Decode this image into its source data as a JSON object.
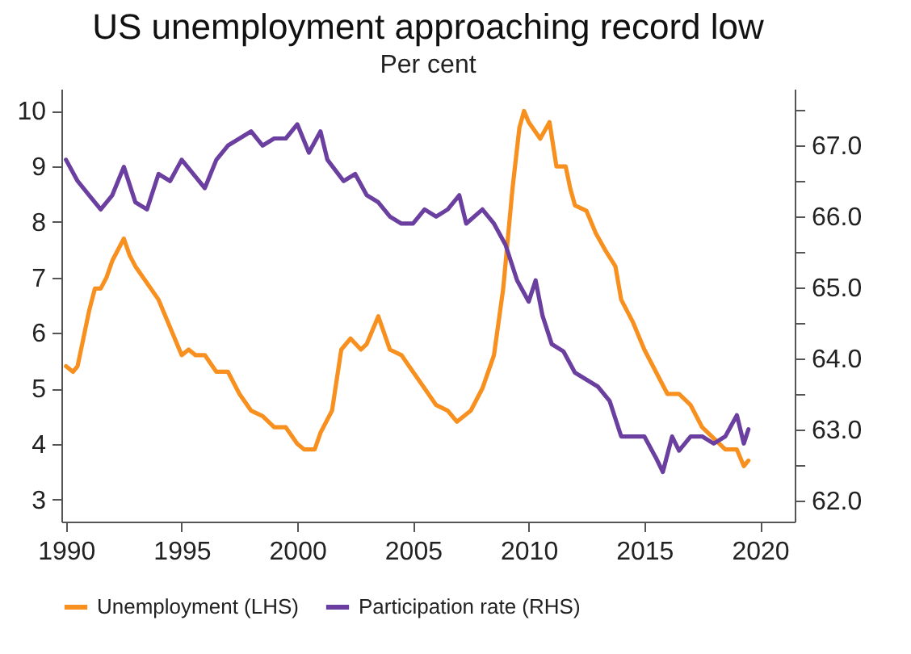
{
  "chart_data": {
    "type": "line",
    "title": "US unemployment approaching record low",
    "subtitle": "Per cent",
    "legend": "bottom",
    "grid": false,
    "xlim": [
      1989.8,
      2021.5
    ],
    "xticks": [
      1990,
      1995,
      2000,
      2005,
      2010,
      2015,
      2020
    ],
    "ylim": [
      2.6,
      10.4
    ],
    "yticks": [
      3,
      4,
      5,
      6,
      7,
      8,
      9,
      10
    ],
    "y2lim": [
      61.7,
      67.8
    ],
    "y2ticks": [
      {
        "value": 62,
        "label": "62.0"
      },
      {
        "value": 62.5,
        "label": null
      },
      {
        "value": 63,
        "label": "63.0"
      },
      {
        "value": 63.5,
        "label": null
      },
      {
        "value": 64,
        "label": "64.0"
      },
      {
        "value": 64.5,
        "label": null
      },
      {
        "value": 65,
        "label": "65.0"
      },
      {
        "value": 65.5,
        "label": null
      },
      {
        "value": 66,
        "label": "66.0"
      },
      {
        "value": 66.5,
        "label": null
      },
      {
        "value": 67,
        "label": "67.0"
      },
      {
        "value": 67.5,
        "label": null
      }
    ],
    "series": [
      {
        "name": "Unemployment (LHS)",
        "color": "#f7901e",
        "x": [
          1990,
          1990.3,
          1990.5,
          1990.75,
          1991,
          1991.25,
          1991.5,
          1991.75,
          1992,
          1992.5,
          1992.75,
          1993,
          1993.5,
          1994,
          1994.5,
          1995,
          1995.3,
          1995.6,
          1996,
          1996.5,
          1997,
          1997.5,
          1998,
          1998.5,
          1999,
          1999.5,
          2000,
          2000.3,
          2000.75,
          2001,
          2001.5,
          2001.9,
          2002.3,
          2002.75,
          2003,
          2003.5,
          2003.75,
          2004,
          2004.5,
          2005,
          2005.5,
          2006,
          2006.5,
          2006.9,
          2007.5,
          2008,
          2008.5,
          2008.9,
          2009.3,
          2009.6,
          2009.8,
          2010,
          2010.5,
          2010.9,
          2011.2,
          2011.6,
          2011.8,
          2012,
          2012.5,
          2012.9,
          2013.3,
          2013.75,
          2014,
          2014.5,
          2015,
          2015.5,
          2016,
          2016.5,
          2017,
          2017.5,
          2018,
          2018.5,
          2019,
          2019.3,
          2019.5
        ],
        "values": [
          5.4,
          5.3,
          5.4,
          5.9,
          6.4,
          6.8,
          6.8,
          7.0,
          7.3,
          7.7,
          7.4,
          7.2,
          6.9,
          6.6,
          6.1,
          5.6,
          5.7,
          5.6,
          5.6,
          5.3,
          5.3,
          4.9,
          4.6,
          4.5,
          4.3,
          4.3,
          4.0,
          3.9,
          3.9,
          4.2,
          4.6,
          5.7,
          5.9,
          5.7,
          5.8,
          6.3,
          6.0,
          5.7,
          5.6,
          5.3,
          5.0,
          4.7,
          4.6,
          4.4,
          4.6,
          5.0,
          5.6,
          6.8,
          8.6,
          9.7,
          10.0,
          9.8,
          9.5,
          9.8,
          9.0,
          9.0,
          8.6,
          8.3,
          8.2,
          7.8,
          7.5,
          7.2,
          6.6,
          6.2,
          5.7,
          5.3,
          4.9,
          4.9,
          4.7,
          4.3,
          4.1,
          3.9,
          3.9,
          3.6,
          3.7
        ]
      },
      {
        "name": "Participation rate (RHS)",
        "color": "#6b3fa0",
        "axis": "y2",
        "x": [
          1990,
          1990.5,
          1991,
          1991.5,
          1992,
          1992.5,
          1993,
          1993.5,
          1994,
          1994.5,
          1995,
          1995.5,
          1996,
          1996.5,
          1997,
          1997.5,
          1998,
          1998.5,
          1999,
          1999.5,
          2000,
          2000.5,
          2001,
          2001.3,
          2002,
          2002.5,
          2003,
          2003.5,
          2004,
          2004.5,
          2005,
          2005.5,
          2006,
          2006.5,
          2007,
          2007.3,
          2008,
          2008.5,
          2009,
          2009.5,
          2010,
          2010.3,
          2010.6,
          2011,
          2011.5,
          2012,
          2012.5,
          2013,
          2013.5,
          2014,
          2014.5,
          2015,
          2015.5,
          2015.8,
          2016.2,
          2016.5,
          2017,
          2017.5,
          2018,
          2018.5,
          2019,
          2019.3,
          2019.5
        ],
        "values": [
          66.8,
          66.5,
          66.3,
          66.1,
          66.3,
          66.7,
          66.2,
          66.1,
          66.6,
          66.5,
          66.8,
          66.6,
          66.4,
          66.8,
          67.0,
          67.1,
          67.2,
          67.0,
          67.1,
          67.1,
          67.3,
          66.9,
          67.2,
          66.8,
          66.5,
          66.6,
          66.3,
          66.2,
          66.0,
          65.9,
          65.9,
          66.1,
          66.0,
          66.1,
          66.3,
          65.9,
          66.1,
          65.9,
          65.6,
          65.1,
          64.8,
          65.1,
          64.6,
          64.2,
          64.1,
          63.8,
          63.7,
          63.6,
          63.4,
          62.9,
          62.9,
          62.9,
          62.6,
          62.4,
          62.9,
          62.7,
          62.9,
          62.9,
          62.8,
          62.9,
          63.2,
          62.8,
          63.0
        ]
      }
    ]
  }
}
